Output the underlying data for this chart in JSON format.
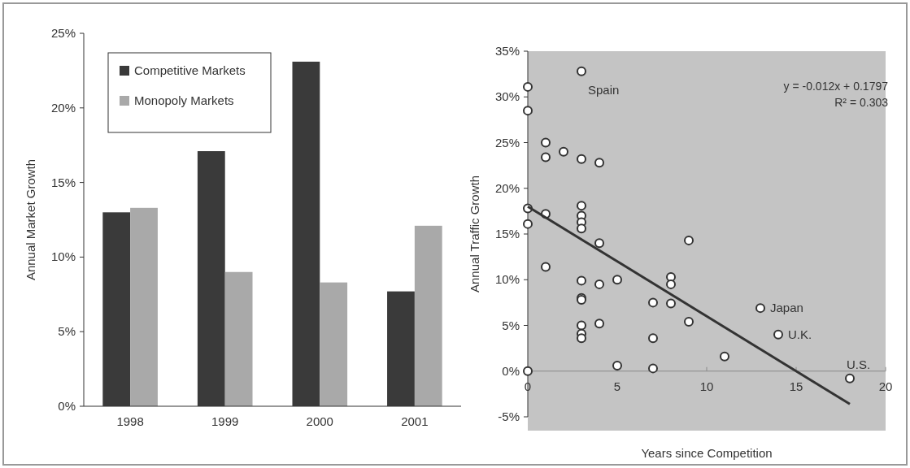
{
  "chart_data": [
    {
      "type": "bar",
      "ylabel": "Annual Market Growth",
      "categories": [
        "1998",
        "1999",
        "2000",
        "2001"
      ],
      "series": [
        {
          "name": "Competitive Markets",
          "color": "#3a3a3a",
          "values": [
            13.0,
            17.1,
            23.1,
            7.7
          ]
        },
        {
          "name": "Monopoly Markets",
          "color": "#a9a9a9",
          "values": [
            13.3,
            9.0,
            8.3,
            12.1
          ]
        }
      ],
      "ylim": [
        0,
        25
      ],
      "yticks": [
        {
          "value": 0,
          "label": "0%"
        },
        {
          "value": 5,
          "label": "5%"
        },
        {
          "value": 10,
          "label": "10%"
        },
        {
          "value": 15,
          "label": "15%"
        },
        {
          "value": 20,
          "label": "20%"
        },
        {
          "value": 25,
          "label": "25%"
        }
      ],
      "legend": "top left",
      "grid": false
    },
    {
      "type": "scatter",
      "xlabel": "Years since Competition",
      "ylabel": "Annual Traffic Growth",
      "grid": false,
      "legend": false,
      "series": [
        {
          "type": "scatter",
          "color": "#333333",
          "marker": "circle",
          "x": [
            0,
            0,
            0,
            0,
            0,
            1,
            1,
            1,
            1,
            2,
            3,
            3,
            3,
            3,
            3,
            3,
            3,
            3,
            3,
            3,
            3,
            3,
            4,
            4,
            4,
            4,
            5,
            5,
            7,
            7,
            7,
            8,
            8,
            8,
            9,
            9,
            11,
            13,
            14,
            18
          ],
          "values": [
            31.1,
            28.5,
            17.8,
            16.1,
            0,
            25,
            23.4,
            17.2,
            11.4,
            24,
            32.8,
            23.2,
            18.1,
            17.0,
            16.3,
            15.6,
            9.9,
            8.0,
            7.8,
            5.0,
            4.1,
            3.6,
            22.8,
            14,
            9.5,
            5.2,
            10,
            0.6,
            7.5,
            3.6,
            0.3,
            10.3,
            9.5,
            7.4,
            14.3,
            5.4,
            1.6,
            6.9,
            4.0,
            -0.8
          ]
        },
        {
          "type": "line",
          "color": "#333333",
          "marker": "none",
          "x": [
            0,
            18
          ],
          "values": [
            18.0,
            -3.6
          ]
        }
      ],
      "xlim": [
        0,
        20
      ],
      "xticks": [
        0,
        5,
        10,
        15,
        20
      ],
      "ylim": [
        -5,
        35
      ],
      "yticks": [
        {
          "value": -5,
          "label": "-5%"
        },
        {
          "value": 0,
          "label": "0%"
        },
        {
          "value": 5,
          "label": "5%"
        },
        {
          "value": 10,
          "label": "10%"
        },
        {
          "value": 15,
          "label": "15%"
        },
        {
          "value": 20,
          "label": "20%"
        },
        {
          "value": 25,
          "label": "25%"
        },
        {
          "value": 30,
          "label": "30%"
        },
        {
          "value": 35,
          "label": "35%"
        }
      ],
      "annotations": [
        {
          "text": "Spain",
          "x": 3,
          "y": 32.8
        },
        {
          "text": "Japan",
          "x": 13,
          "y": 6.9
        },
        {
          "text": "U.K.",
          "x": 14,
          "y": 4.0
        },
        {
          "text": "U.S.",
          "x": 18,
          "y": -0.8
        },
        "y = -0.012x + 0.1797",
        "R² = 0.303"
      ]
    }
  ]
}
